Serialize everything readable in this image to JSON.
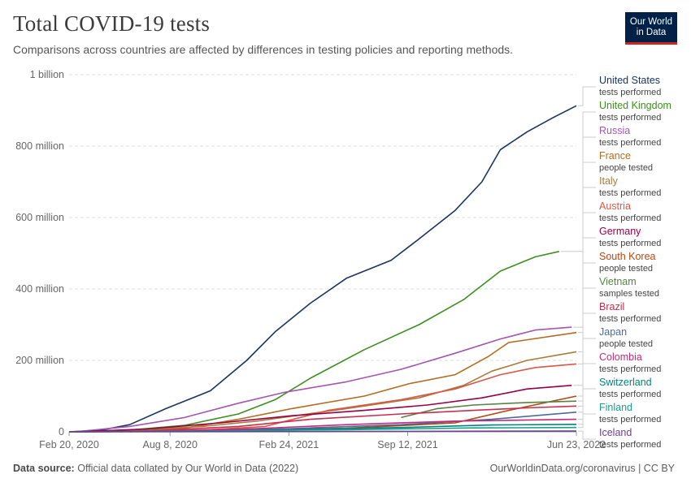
{
  "header": {
    "title": "Total COVID-19 tests",
    "subtitle": "Comparisons across countries are affected by differences in testing policies and reporting methods."
  },
  "logo": {
    "line1": "Our World",
    "line2": "in Data",
    "background": "#002147",
    "accent": "#ce261e"
  },
  "footer": {
    "source_label": "Data source:",
    "source_text": "Official data collated by Our World in Data (2022)",
    "credit": "OurWorldinData.org/coronavirus | CC BY"
  },
  "chart_data": {
    "type": "line",
    "title": "Total COVID-19 tests",
    "xlabel": "",
    "ylabel": "",
    "ylim": [
      0,
      1000000000
    ],
    "yticks": [
      {
        "value": 0,
        "label": "0"
      },
      {
        "value": 200000000,
        "label": "200 million"
      },
      {
        "value": 400000000,
        "label": "400 million"
      },
      {
        "value": 600000000,
        "label": "600 million"
      },
      {
        "value": 800000000,
        "label": "800 million"
      },
      {
        "value": 1000000000,
        "label": "1 billion"
      }
    ],
    "xlim": [
      "2020-02-20",
      "2022-06-23"
    ],
    "xticks": [
      {
        "value": "2020-02-20",
        "label": "Feb 20, 2020"
      },
      {
        "value": "2020-08-08",
        "label": "Aug 8, 2020"
      },
      {
        "value": "2021-02-24",
        "label": "Feb 24, 2021"
      },
      {
        "value": "2021-09-12",
        "label": "Sep 12, 2021"
      },
      {
        "value": "2022-06-23",
        "label": "Jun 23, 2022"
      }
    ],
    "grid": true,
    "legend_position": "right",
    "series": [
      {
        "name": "United States",
        "unit": "tests performed",
        "color": "#1a3461",
        "points": [
          [
            "2020-02-20",
            0
          ],
          [
            "2020-04-15",
            5000000
          ],
          [
            "2020-06-01",
            20000000
          ],
          [
            "2020-08-01",
            65000000
          ],
          [
            "2020-10-15",
            115000000
          ],
          [
            "2020-12-15",
            200000000
          ],
          [
            "2021-02-01",
            280000000
          ],
          [
            "2021-04-01",
            360000000
          ],
          [
            "2021-06-01",
            430000000
          ],
          [
            "2021-08-15",
            480000000
          ],
          [
            "2021-10-01",
            540000000
          ],
          [
            "2021-12-01",
            620000000
          ],
          [
            "2022-01-15",
            700000000
          ],
          [
            "2022-02-15",
            790000000
          ],
          [
            "2022-04-01",
            840000000
          ],
          [
            "2022-05-15",
            880000000
          ],
          [
            "2022-06-23",
            913000000
          ]
        ]
      },
      {
        "name": "United Kingdom",
        "unit": "tests performed",
        "color": "#3c8f1f",
        "points": [
          [
            "2020-03-01",
            0
          ],
          [
            "2020-06-01",
            5000000
          ],
          [
            "2020-09-01",
            18000000
          ],
          [
            "2020-12-01",
            50000000
          ],
          [
            "2021-02-01",
            90000000
          ],
          [
            "2021-04-01",
            150000000
          ],
          [
            "2021-07-01",
            230000000
          ],
          [
            "2021-10-01",
            300000000
          ],
          [
            "2021-12-15",
            370000000
          ],
          [
            "2022-02-15",
            450000000
          ],
          [
            "2022-04-15",
            490000000
          ],
          [
            "2022-05-25",
            505000000
          ]
        ]
      },
      {
        "name": "Russia",
        "unit": "tests performed",
        "color": "#a356b0",
        "points": [
          [
            "2020-03-01",
            0
          ],
          [
            "2020-06-01",
            15000000
          ],
          [
            "2020-09-01",
            40000000
          ],
          [
            "2020-12-01",
            80000000
          ],
          [
            "2021-02-15",
            110000000
          ],
          [
            "2021-06-01",
            140000000
          ],
          [
            "2021-09-01",
            175000000
          ],
          [
            "2021-12-01",
            220000000
          ],
          [
            "2022-02-15",
            260000000
          ],
          [
            "2022-04-15",
            285000000
          ],
          [
            "2022-06-15",
            293000000
          ]
        ]
      },
      {
        "name": "France",
        "unit": "people tested",
        "color": "#b66a1e",
        "points": [
          [
            "2020-05-15",
            0
          ],
          [
            "2020-09-01",
            10000000
          ],
          [
            "2020-12-01",
            35000000
          ],
          [
            "2021-03-01",
            65000000
          ],
          [
            "2021-07-01",
            100000000
          ],
          [
            "2021-09-15",
            135000000
          ],
          [
            "2021-12-01",
            160000000
          ],
          [
            "2022-01-25",
            210000000
          ],
          [
            "2022-03-01",
            250000000
          ],
          [
            "2022-06-23",
            278000000
          ]
        ]
      },
      {
        "name": "Italy",
        "unit": "tests performed",
        "color": "#a87a3a",
        "points": [
          [
            "2020-02-25",
            0
          ],
          [
            "2020-06-01",
            5000000
          ],
          [
            "2020-10-01",
            15000000
          ],
          [
            "2021-01-01",
            30000000
          ],
          [
            "2021-06-01",
            65000000
          ],
          [
            "2021-10-01",
            95000000
          ],
          [
            "2021-12-15",
            130000000
          ],
          [
            "2022-02-01",
            170000000
          ],
          [
            "2022-04-01",
            200000000
          ],
          [
            "2022-06-23",
            224000000
          ]
        ]
      },
      {
        "name": "Austria",
        "unit": "tests performed",
        "color": "#d8584a",
        "points": [
          [
            "2020-03-01",
            0
          ],
          [
            "2020-10-01",
            5000000
          ],
          [
            "2021-01-15",
            15000000
          ],
          [
            "2021-05-01",
            60000000
          ],
          [
            "2021-09-01",
            90000000
          ],
          [
            "2021-12-01",
            120000000
          ],
          [
            "2022-02-15",
            160000000
          ],
          [
            "2022-04-15",
            180000000
          ],
          [
            "2022-06-23",
            190000000
          ]
        ]
      },
      {
        "name": "Germany",
        "unit": "tests performed",
        "color": "#970046",
        "points": [
          [
            "2020-03-01",
            0
          ],
          [
            "2020-07-01",
            8000000
          ],
          [
            "2020-11-01",
            25000000
          ],
          [
            "2021-03-01",
            45000000
          ],
          [
            "2021-07-01",
            60000000
          ],
          [
            "2021-10-15",
            75000000
          ],
          [
            "2022-01-15",
            95000000
          ],
          [
            "2022-04-01",
            120000000
          ],
          [
            "2022-06-15",
            130000000
          ]
        ]
      },
      {
        "name": "South Korea",
        "unit": "people tested",
        "color": "#b34810",
        "points": [
          [
            "2020-02-20",
            0
          ],
          [
            "2020-06-01",
            1000000
          ],
          [
            "2020-12-01",
            4000000
          ],
          [
            "2021-06-01",
            10000000
          ],
          [
            "2021-12-01",
            25000000
          ],
          [
            "2022-03-01",
            60000000
          ],
          [
            "2022-06-23",
            100000000
          ]
        ]
      },
      {
        "name": "Vietnam",
        "unit": "samples tested",
        "color": "#578145",
        "points": [
          [
            "2021-09-01",
            40000000
          ],
          [
            "2021-11-01",
            65000000
          ],
          [
            "2022-01-01",
            75000000
          ],
          [
            "2022-04-01",
            82000000
          ],
          [
            "2022-06-23",
            86000000
          ]
        ]
      },
      {
        "name": "Brazil",
        "unit": "tests performed",
        "color": "#c72f4f",
        "points": [
          [
            "2020-06-01",
            0
          ],
          [
            "2020-12-01",
            15000000
          ],
          [
            "2021-04-01",
            35000000
          ],
          [
            "2021-09-01",
            50000000
          ],
          [
            "2022-01-01",
            60000000
          ],
          [
            "2022-04-01",
            67000000
          ],
          [
            "2022-06-23",
            72000000
          ]
        ]
      },
      {
        "name": "Japan",
        "unit": "people tested",
        "color": "#4c6a9c",
        "points": [
          [
            "2020-02-20",
            0
          ],
          [
            "2020-09-01",
            2000000
          ],
          [
            "2021-03-01",
            9000000
          ],
          [
            "2021-09-01",
            20000000
          ],
          [
            "2022-02-01",
            35000000
          ],
          [
            "2022-06-23",
            55000000
          ]
        ]
      },
      {
        "name": "Colombia",
        "unit": "tests performed",
        "color": "#c82a76",
        "points": [
          [
            "2020-03-15",
            0
          ],
          [
            "2020-09-01",
            4000000
          ],
          [
            "2021-01-01",
            9000000
          ],
          [
            "2021-06-01",
            20000000
          ],
          [
            "2021-12-01",
            30000000
          ],
          [
            "2022-06-23",
            35000000
          ]
        ]
      },
      {
        "name": "Switzerland",
        "unit": "tests performed",
        "color": "#00847e",
        "points": [
          [
            "2020-03-01",
            0
          ],
          [
            "2020-10-01",
            2000000
          ],
          [
            "2021-03-01",
            6000000
          ],
          [
            "2021-09-01",
            12000000
          ],
          [
            "2022-02-01",
            19000000
          ],
          [
            "2022-06-23",
            21000000
          ]
        ]
      },
      {
        "name": "Finland",
        "unit": "tests performed",
        "color": "#18a08a",
        "points": [
          [
            "2020-03-01",
            0
          ],
          [
            "2020-10-01",
            1500000
          ],
          [
            "2021-06-01",
            6000000
          ],
          [
            "2022-01-01",
            11000000
          ],
          [
            "2022-06-23",
            12000000
          ]
        ]
      },
      {
        "name": "Iceland",
        "unit": "tests performed",
        "color": "#6d3e91",
        "points": [
          [
            "2020-02-20",
            0
          ],
          [
            "2021-06-01",
            800000
          ],
          [
            "2022-06-23",
            2000000
          ]
        ]
      }
    ]
  }
}
